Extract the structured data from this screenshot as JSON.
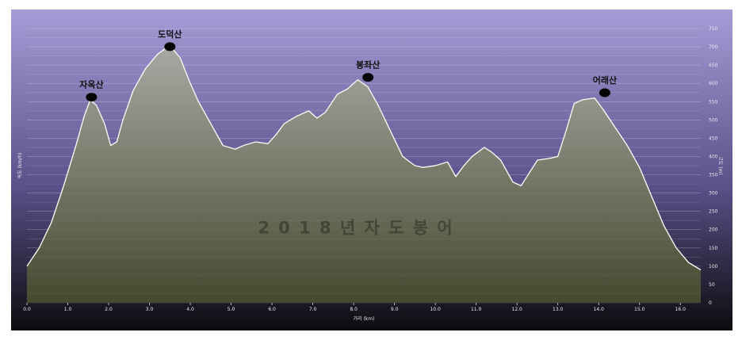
{
  "chart_data": {
    "type": "area",
    "xlabel": "거리 (km)",
    "ylabel_left": "속도 (km/h)",
    "ylabel_right": "고도 (m)",
    "xlim": [
      0,
      16.5
    ],
    "ylim": [
      0,
      750
    ],
    "x_ticks": [
      0,
      1,
      2,
      3,
      4,
      5,
      6,
      7,
      8,
      9,
      10,
      11,
      12,
      13,
      14,
      15,
      16
    ],
    "x_tick_labels": [
      "0.0",
      "1.0",
      "2.0",
      "3.0",
      "4.0",
      "5.0",
      "6.0",
      "7.0",
      "8.0",
      "9.0",
      "10.0",
      "11.0",
      "12.0",
      "13.0",
      "14.0",
      "15.0",
      "16.0"
    ],
    "y_ticks": [
      0,
      50,
      100,
      150,
      200,
      250,
      300,
      350,
      400,
      450,
      500,
      550,
      600,
      650,
      700,
      750
    ],
    "grid": true,
    "colors": {
      "bg_top": "#a89cd8",
      "bg_mid": "#5b5089",
      "bg_bottom": "#0c0c0e",
      "fill_top": "#a8a8a3",
      "fill_bottom": "#45492e",
      "line": "#f5f5f0"
    },
    "series": [
      {
        "x": [
          0.0,
          0.3,
          0.6,
          0.9,
          1.2,
          1.4,
          1.55,
          1.7,
          1.9,
          2.05,
          2.2,
          2.35,
          2.6,
          2.9,
          3.2,
          3.45,
          3.6,
          3.75,
          4.0,
          4.2,
          4.5,
          4.8,
          5.1,
          5.3,
          5.6,
          5.9,
          6.1,
          6.3,
          6.6,
          6.9,
          7.1,
          7.3,
          7.6,
          7.85,
          8.1,
          8.35,
          8.6,
          8.9,
          9.2,
          9.5,
          9.7,
          10.0,
          10.3,
          10.5,
          10.7,
          10.9,
          11.2,
          11.4,
          11.6,
          11.9,
          12.1,
          12.3,
          12.5,
          12.8,
          13.0,
          13.2,
          13.4,
          13.6,
          13.9,
          14.1,
          14.4,
          14.7,
          15.0,
          15.3,
          15.6,
          15.9,
          16.2,
          16.5
        ],
        "y": [
          100,
          150,
          220,
          320,
          430,
          510,
          555,
          540,
          490,
          430,
          440,
          500,
          580,
          640,
          680,
          700,
          690,
          670,
          600,
          550,
          490,
          430,
          420,
          430,
          440,
          435,
          460,
          490,
          510,
          525,
          505,
          520,
          570,
          585,
          610,
          590,
          540,
          470,
          400,
          375,
          370,
          375,
          385,
          345,
          375,
          400,
          425,
          410,
          390,
          330,
          320,
          355,
          390,
          395,
          400,
          470,
          545,
          555,
          560,
          530,
          480,
          430,
          370,
          290,
          210,
          150,
          110,
          90
        ]
      }
    ],
    "annotations": [
      {
        "label": "자옥산",
        "x": 1.58,
        "y": 558
      },
      {
        "label": "도덕산",
        "x": 3.5,
        "y": 696
      },
      {
        "label": "봉좌산",
        "x": 8.35,
        "y": 612
      },
      {
        "label": "어래산",
        "x": 14.15,
        "y": 570
      }
    ],
    "watermark": "2 0 1 8 년     자 도 봉 어"
  }
}
